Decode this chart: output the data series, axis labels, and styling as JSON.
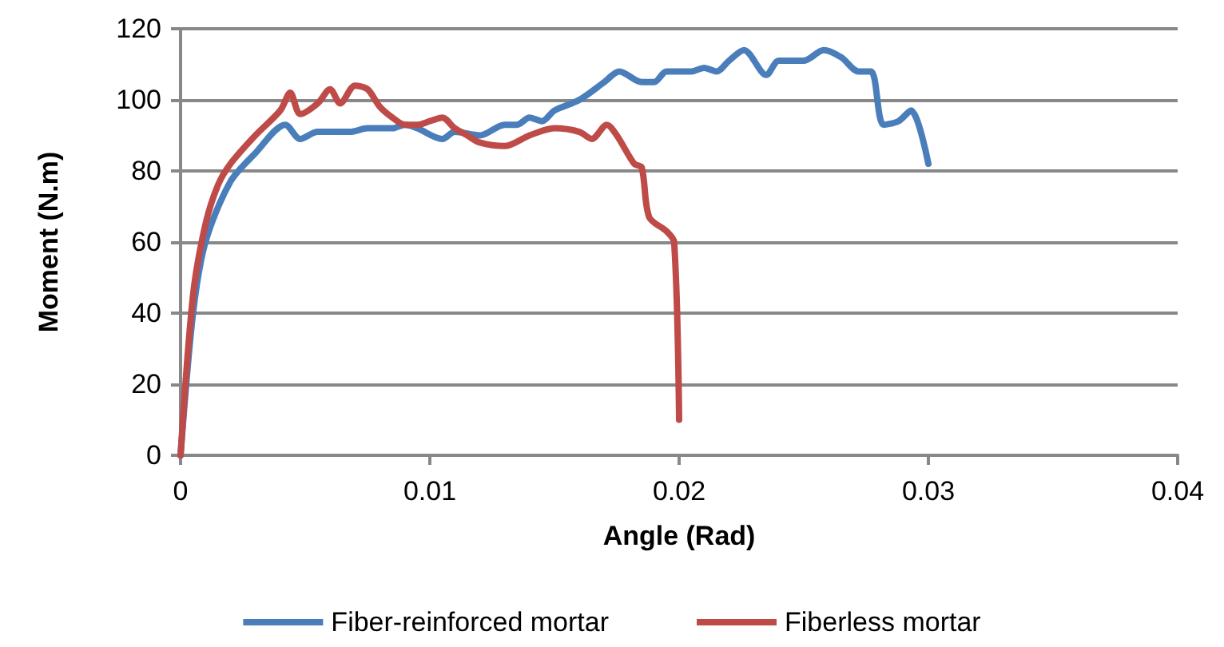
{
  "chart_data": {
    "type": "line",
    "xlabel": "Angle (Rad)",
    "ylabel": "Moment (N.m)",
    "xlim": [
      0,
      0.04
    ],
    "xticks": [
      0,
      0.01,
      0.02,
      0.03,
      0.04
    ],
    "ylim": [
      0,
      120
    ],
    "yticks": [
      0,
      20,
      40,
      60,
      80,
      100,
      120
    ],
    "grid": "y",
    "legend": "bottom",
    "marker": "none",
    "line_style": "solid",
    "series": [
      {
        "name": "Fiber-reinforced mortar",
        "color": "#4a7ebb",
        "x": [
          0,
          0.0005,
          0.001,
          0.002,
          0.003,
          0.0042,
          0.0048,
          0.0055,
          0.0068,
          0.0075,
          0.0085,
          0.009,
          0.0095,
          0.0105,
          0.011,
          0.012,
          0.013,
          0.0135,
          0.014,
          0.0145,
          0.015,
          0.016,
          0.017,
          0.0176,
          0.0185,
          0.019,
          0.0195,
          0.0205,
          0.021,
          0.0215,
          0.022,
          0.0226,
          0.0235,
          0.024,
          0.025,
          0.0258,
          0.0265,
          0.0272,
          0.0277,
          0.0282,
          0.0288,
          0.0293,
          0.03
        ],
        "values": [
          0,
          40,
          60,
          77,
          85,
          93,
          89,
          91,
          91,
          92,
          92,
          93,
          92,
          89,
          91,
          90,
          93,
          93,
          95,
          94,
          97,
          100,
          105,
          108,
          105,
          105,
          108,
          108,
          109,
          108,
          111,
          114,
          107,
          111,
          111,
          114,
          112,
          108,
          108,
          93,
          94,
          97,
          82
        ]
      },
      {
        "name": "Fiberless mortar",
        "color": "#be4b48",
        "x": [
          0,
          0.0005,
          0.001,
          0.0015,
          0.002,
          0.003,
          0.004,
          0.0044,
          0.0048,
          0.0055,
          0.006,
          0.0064,
          0.007,
          0.0075,
          0.008,
          0.0085,
          0.009,
          0.0095,
          0.01,
          0.0105,
          0.011,
          0.0115,
          0.012,
          0.013,
          0.014,
          0.015,
          0.016,
          0.0165,
          0.0171,
          0.0175,
          0.0182,
          0.0185,
          0.0188,
          0.0195,
          0.0198,
          0.02
        ],
        "values": [
          0,
          45,
          65,
          76,
          82,
          90,
          97,
          102,
          96,
          99,
          103,
          99,
          104,
          103,
          98,
          95,
          93,
          93,
          94,
          95,
          92,
          90,
          88,
          87,
          90,
          92,
          91,
          89,
          93,
          90,
          82,
          81,
          67,
          63,
          60,
          10
        ]
      }
    ]
  }
}
